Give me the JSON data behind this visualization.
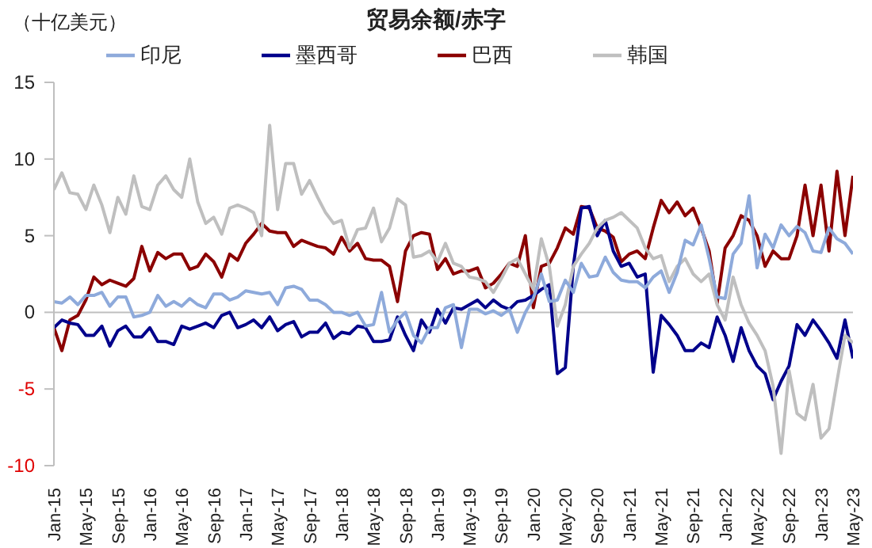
{
  "chart_data": {
    "type": "line",
    "title": "贸易余额/赤字",
    "ylabel": "（十亿美元）",
    "categories": [
      "Jan-15",
      null,
      null,
      null,
      "May-15",
      null,
      null,
      null,
      "Sep-15",
      null,
      null,
      null,
      "Jan-16",
      null,
      null,
      null,
      "May-16",
      null,
      null,
      null,
      "Sep-16",
      null,
      null,
      null,
      "Jan-17",
      null,
      null,
      null,
      "May-17",
      null,
      null,
      null,
      "Sep-17",
      null,
      null,
      null,
      "Jan-18",
      null,
      null,
      null,
      "May-18",
      null,
      null,
      null,
      "Sep-18",
      null,
      null,
      null,
      "Jan-19",
      null,
      null,
      null,
      "May-19",
      null,
      null,
      null,
      "Sep-19",
      null,
      null,
      null,
      "Jan-20",
      null,
      null,
      null,
      "May-20",
      null,
      null,
      null,
      "Sep-20",
      null,
      null,
      null,
      "Jan-21",
      null,
      null,
      null,
      "May-21",
      null,
      null,
      null,
      "Sep-21",
      null,
      null,
      null,
      "Jan-22",
      null,
      null,
      null,
      "May-22",
      null,
      null,
      null,
      "Sep-22",
      null,
      null,
      null,
      "Jan-23",
      null,
      null,
      null,
      "May-23"
    ],
    "series": [
      {
        "name": "巴西",
        "color": "#8b0000",
        "values": [
          -1,
          -2.5,
          -0.5,
          -0.2,
          0.8,
          2.3,
          1.8,
          2.1,
          1.9,
          1.7,
          2.2,
          4.3,
          2.7,
          3.9,
          3.5,
          3.8,
          3.8,
          2.8,
          3.0,
          3.8,
          3.3,
          2.3,
          3.8,
          3.4,
          4.5,
          5.1,
          5.8,
          5.3,
          5.2,
          5.2,
          4.3,
          4.7,
          4.5,
          4.3,
          4.2,
          3.8,
          4.9,
          4.0,
          4.5,
          3.5,
          3.4,
          3.4,
          3.0,
          0.7,
          4.0,
          5.0,
          5.2,
          5.1,
          2.8,
          3.5,
          2.5,
          2.7,
          2.7,
          2.9,
          1.6,
          1.9,
          2.5,
          3.2,
          3.0,
          5.0,
          0.3,
          3.0,
          3.2,
          4.2,
          5.5,
          5.1,
          6.9,
          6.8,
          5.5,
          5.3,
          4.9,
          3.3,
          3.8,
          4.0,
          3.5,
          5.5,
          7.3,
          6.5,
          7.2,
          6.3,
          6.8,
          5.5,
          4.0,
          0.6,
          4.2,
          5.0,
          6.3,
          6.0,
          5.0,
          3.0,
          4.0,
          3.5,
          3.5,
          5.0,
          8.3,
          5.0,
          8.3,
          4.0,
          9.2,
          5.0,
          8.9
        ]
      },
      {
        "name": "墨西哥",
        "color": "#00008b",
        "values": [
          -1,
          -0.5,
          -0.7,
          -0.8,
          -1.5,
          -1.5,
          -0.9,
          -2.2,
          -1.2,
          -0.9,
          -1.6,
          -1.6,
          -1.0,
          -1.9,
          -1.9,
          -2.1,
          -0.9,
          -1.1,
          -0.9,
          -0.7,
          -1.0,
          -0.2,
          0.0,
          -1.0,
          -0.8,
          -0.5,
          -1.0,
          -0.3,
          -1.2,
          -0.8,
          -0.6,
          -1.6,
          -1.3,
          -1.3,
          -0.7,
          -1.7,
          -1.3,
          -1.4,
          -0.9,
          -1.0,
          -1.9,
          -1.9,
          -1.8,
          -0.3,
          -1.5,
          -2.5,
          -0.5,
          -1.3,
          0.2,
          -0.7,
          0.3,
          0.2,
          0.5,
          0.8,
          0.3,
          0.8,
          0.4,
          0.2,
          0.7,
          0.8,
          1.1,
          1.5,
          1.8,
          -4.0,
          -3.6,
          3.0,
          6.8,
          6.9,
          5.0,
          6.0,
          4.0,
          3.0,
          3.2,
          2.3,
          2.5,
          -3.9,
          -0.2,
          -0.8,
          -1.5,
          -2.5,
          -2.5,
          -2.0,
          -2.3,
          -0.3,
          -1.5,
          -3.2,
          -1.0,
          -2.5,
          -3.5,
          -4.0,
          -5.7,
          -4.5,
          -3.5,
          -0.8,
          -1.5,
          -0.5,
          -1.2,
          -2.0,
          -3.0,
          -0.5,
          -3.0
        ]
      },
      {
        "name": "韩国",
        "color": "#bfbfbf",
        "values": [
          8.0,
          9.1,
          7.8,
          7.7,
          6.7,
          8.3,
          7.0,
          5.2,
          7.5,
          6.4,
          8.9,
          6.9,
          6.7,
          8.3,
          8.9,
          8.0,
          7.5,
          10.0,
          7.2,
          5.8,
          6.2,
          5.1,
          6.8,
          7.0,
          6.8,
          6.5,
          5.0,
          12.2,
          6.7,
          9.7,
          9.7,
          7.7,
          8.6,
          7.5,
          6.5,
          5.8,
          6.0,
          4.2,
          5.4,
          5.5,
          6.8,
          4.6,
          5.5,
          7.4,
          7.0,
          3.6,
          3.7,
          4.0,
          3.3,
          4.5,
          3.2,
          3.0,
          2.3,
          2.2,
          2.0,
          1.3,
          2.2,
          3.2,
          3.5,
          2.5,
          1.5,
          4.8,
          3.0,
          -0.9,
          0.5,
          3.0,
          3.8,
          4.5,
          5.5,
          6.0,
          6.2,
          6.5,
          6.0,
          5.5,
          4.2,
          3.5,
          3.7,
          2.0,
          3.0,
          3.5,
          2.5,
          2.0,
          2.5,
          0.5,
          -0.5,
          2.3,
          0.5,
          -0.7,
          -1.5,
          -2.5,
          -4.8,
          -9.2,
          -3.8,
          -6.6,
          -7.0,
          -4.7,
          -8.2,
          -7.6,
          -4.5,
          -1.5,
          -2.0
        ]
      },
      {
        "name": "印尼",
        "color": "#8eaadb",
        "values": [
          0.7,
          0.6,
          1.0,
          0.5,
          1.1,
          1.1,
          1.3,
          0.4,
          1.0,
          1.0,
          -0.3,
          -0.2,
          0.0,
          1.1,
          0.4,
          0.7,
          0.4,
          0.9,
          0.5,
          0.3,
          1.2,
          1.2,
          0.8,
          1.0,
          1.4,
          1.3,
          1.2,
          1.3,
          0.5,
          1.6,
          1.7,
          1.5,
          0.8,
          0.8,
          0.5,
          0.0,
          0.0,
          -0.2,
          0.0,
          -0.9,
          -0.8,
          1.3,
          -1.3,
          -0.5,
          0.0,
          -1.5,
          -2.0,
          -1.0,
          -1.0,
          0.3,
          0.5,
          -2.3,
          0.2,
          0.2,
          -0.1,
          0.1,
          -0.2,
          0.2,
          -1.3,
          0.0,
          0.9,
          2.5,
          0.7,
          0.8,
          2.1,
          1.3,
          3.2,
          2.3,
          2.4,
          3.6,
          2.6,
          2.1,
          2.0,
          2.0,
          1.6,
          2.3,
          2.7,
          1.3,
          2.6,
          4.7,
          4.4,
          5.7,
          3.5,
          1.0,
          0.9,
          3.8,
          4.5,
          7.6,
          2.9,
          5.1,
          4.2,
          5.7,
          5.0,
          5.6,
          5.2,
          4.0,
          3.9,
          5.5,
          4.8,
          4.5,
          3.8
        ]
      }
    ],
    "ylim": [
      -10,
      15
    ],
    "yticks": [
      -10,
      -5,
      0,
      5,
      10,
      15
    ],
    "ref_lines": [
      {
        "axis": "y",
        "value": 0,
        "color": "#bfbfbf"
      }
    ],
    "grid": false,
    "legend": "top",
    "marker": "none",
    "line_style": "solid"
  }
}
